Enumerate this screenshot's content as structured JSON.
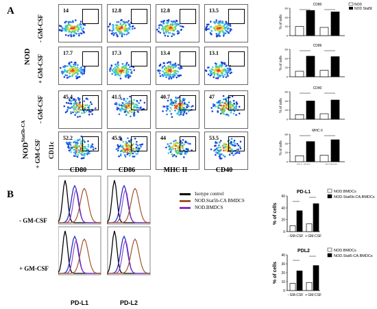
{
  "panel_a": {
    "letter": "A",
    "group_nod": "NOD",
    "group_stat_base": "NOD",
    "group_stat_sup": "Stat5b-CA",
    "minus_gmcsf": "- GM-CSF",
    "plus_gmcsf": "+ GM-CSF",
    "y_axis": "CD11c",
    "columns": [
      "CD80",
      "CD86",
      "MHC II",
      "CD40"
    ],
    "flow_values": [
      [
        "14",
        "12.8",
        "12.8",
        "13.5"
      ],
      [
        "17.7",
        "17.3",
        "13.4",
        "13.1"
      ],
      [
        "45.4",
        "41.5",
        "40.7",
        "47"
      ],
      [
        "52.2",
        "45.9",
        "44",
        "53.5"
      ]
    ],
    "bar_titles": [
      "CD80",
      "CD86",
      "CD40",
      "MHC II"
    ],
    "bar_ylabel": "% of cells",
    "bar_xlabels": [
      "- GM-CSF",
      "+ GMCSF"
    ],
    "legend": [
      "NOD",
      "NOD Stat5b-CA"
    ]
  },
  "panel_b": {
    "letter": "B",
    "row_labels": [
      "- GM-CSF",
      "+ GM-CSF"
    ],
    "x_labels": [
      "PD-L1",
      "PD-L2"
    ],
    "legend": [
      {
        "label": "Isotype control",
        "color": "#000000"
      },
      {
        "label": "NOD.Stat5b-CA BMDCS",
        "color": "#a0522d"
      },
      {
        "label": "NOD.BMDCS",
        "color": "#8b2fc9"
      }
    ],
    "bar_charts": [
      {
        "title": "PD-L1",
        "legend": [
          "NOD.BMDCs",
          "NOD.Stat5b-CA.BMDCs"
        ],
        "ylabel": "% of cells",
        "xlabels": [
          "- GM-CSF",
          "+ GM-CSF"
        ]
      },
      {
        "title": "PDL2",
        "legend": [
          "NOD.BMDCs",
          "NOD.Stat5-CA.BMDCs"
        ],
        "ylabel": "% of cells",
        "xlabels": [
          "- GM-CSF",
          "+ GM-CSF"
        ]
      }
    ]
  },
  "chart_data": [
    {
      "type": "bar",
      "title": "CD80",
      "categories": [
        "- GM-CSF",
        "+ GMCSF"
      ],
      "series": [
        {
          "name": "NOD",
          "values": [
            20,
            18
          ]
        },
        {
          "name": "NOD Stat5b-CA",
          "values": [
            55,
            52
          ]
        }
      ],
      "ylabel": "% of cells",
      "ylim": [
        0,
        60
      ]
    },
    {
      "type": "bar",
      "title": "CD86",
      "categories": [
        "- GM-CSF",
        "+ GMCSF"
      ],
      "series": [
        {
          "name": "NOD",
          "values": [
            12,
            14
          ]
        },
        {
          "name": "NOD Stat5b-CA",
          "values": [
            45,
            44
          ]
        }
      ],
      "ylabel": "% of cells",
      "ylim": [
        0,
        60
      ]
    },
    {
      "type": "bar",
      "title": "CD40",
      "categories": [
        "- GM-CSF",
        "+ GMCSF"
      ],
      "series": [
        {
          "name": "NOD",
          "values": [
            10,
            12
          ]
        },
        {
          "name": "NOD Stat5b-CA",
          "values": [
            40,
            42
          ]
        }
      ],
      "ylabel": "% of cells",
      "ylim": [
        0,
        60
      ]
    },
    {
      "type": "bar",
      "title": "MHC II",
      "categories": [
        "- GM-CSF",
        "+ GMCSF"
      ],
      "series": [
        {
          "name": "NOD",
          "values": [
            13,
            14
          ]
        },
        {
          "name": "NOD Stat5b-CA",
          "values": [
            44,
            48
          ]
        }
      ],
      "ylabel": "% of cells",
      "ylim": [
        0,
        60
      ]
    },
    {
      "type": "bar",
      "title": "PD-L1",
      "categories": [
        "- GM-CSF",
        "+ GM-CSF"
      ],
      "series": [
        {
          "name": "NOD.BMDCs",
          "values": [
            10,
            13
          ]
        },
        {
          "name": "NOD.Stat5b-CA.BMDCs",
          "values": [
            35,
            47
          ]
        }
      ],
      "ylabel": "% of cells",
      "ylim": [
        0,
        60
      ]
    },
    {
      "type": "bar",
      "title": "PDL2",
      "categories": [
        "- GM-CSF",
        "+ GM-CSF"
      ],
      "series": [
        {
          "name": "NOD.BMDCs",
          "values": [
            8,
            9
          ]
        },
        {
          "name": "NOD.Stat5-CA.BMDCs",
          "values": [
            22,
            28
          ]
        }
      ],
      "ylabel": "% of cells",
      "ylim": [
        0,
        40
      ]
    }
  ]
}
